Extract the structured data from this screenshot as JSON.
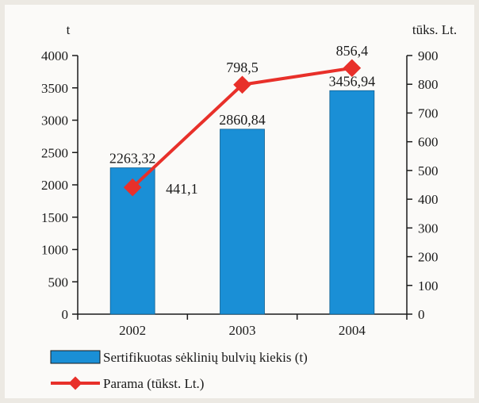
{
  "chart_data": {
    "type": "bar+line",
    "categories": [
      "2002",
      "2003",
      "2004"
    ],
    "series": [
      {
        "name": "Sertifikuotas sėklinių bulvių kiekis (t)",
        "type": "bar",
        "axis": "left",
        "values": [
          2263.32,
          2860.84,
          3456.94
        ],
        "labels": [
          "2263,32",
          "2860,84",
          "3456,94"
        ],
        "color": "#1a8fd6"
      },
      {
        "name": "Parama (tūkst. Lt.)",
        "type": "line",
        "axis": "right",
        "values": [
          441.1,
          798.5,
          856.4
        ],
        "labels": [
          "441,1",
          "798,5",
          "856,4"
        ],
        "color": "#e8302a"
      }
    ],
    "y_left": {
      "label": "t",
      "ylim": [
        0,
        4000
      ],
      "ticks": [
        "0",
        "500",
        "1000",
        "1500",
        "2000",
        "2500",
        "3000",
        "3500",
        "4000"
      ]
    },
    "y_right": {
      "label": "tūks. Lt.",
      "ylim": [
        0,
        900
      ],
      "ticks": [
        "0",
        "100",
        "200",
        "300",
        "400",
        "500",
        "600",
        "700",
        "800",
        "900"
      ]
    },
    "grid": false,
    "legend": "bottom"
  }
}
